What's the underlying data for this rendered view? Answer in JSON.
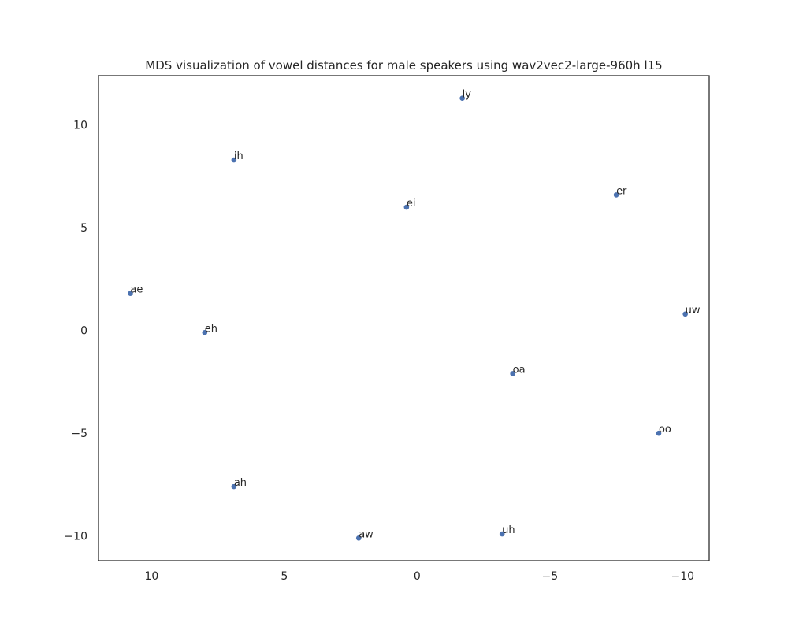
{
  "chart_data": {
    "type": "scatter",
    "title": "MDS visualization of vowel distances for male speakers using wav2vec2-large-960h l15",
    "xlabel": "",
    "ylabel": "",
    "x_inverted": true,
    "xlim": [
      12,
      -11
    ],
    "ylim": [
      -11.2,
      12.4
    ],
    "x_ticks": [
      10,
      5,
      0,
      -5,
      -10
    ],
    "x_tick_labels": [
      "10",
      "5",
      "0",
      "−5",
      "−10"
    ],
    "y_ticks": [
      10,
      5,
      0,
      -5,
      -10
    ],
    "y_tick_labels": [
      "10",
      "5",
      "0",
      "−5",
      "−10"
    ],
    "grid": false,
    "marker_color": "#4c72b0",
    "points": [
      {
        "label": "iy",
        "x": -1.7,
        "y": 11.3
      },
      {
        "label": "ih",
        "x": 6.9,
        "y": 8.3
      },
      {
        "label": "ei",
        "x": 0.4,
        "y": 6.0
      },
      {
        "label": "er",
        "x": -7.5,
        "y": 6.6
      },
      {
        "label": "ae",
        "x": 10.8,
        "y": 1.8
      },
      {
        "label": "uw",
        "x": -10.1,
        "y": 0.8
      },
      {
        "label": "eh",
        "x": 8.0,
        "y": -0.1
      },
      {
        "label": "oa",
        "x": -3.6,
        "y": -2.1
      },
      {
        "label": "oo",
        "x": -9.1,
        "y": -5.0
      },
      {
        "label": "ah",
        "x": 6.9,
        "y": -7.6
      },
      {
        "label": "uh",
        "x": -3.2,
        "y": -9.9
      },
      {
        "label": "aw",
        "x": 2.2,
        "y": -10.1
      }
    ]
  }
}
